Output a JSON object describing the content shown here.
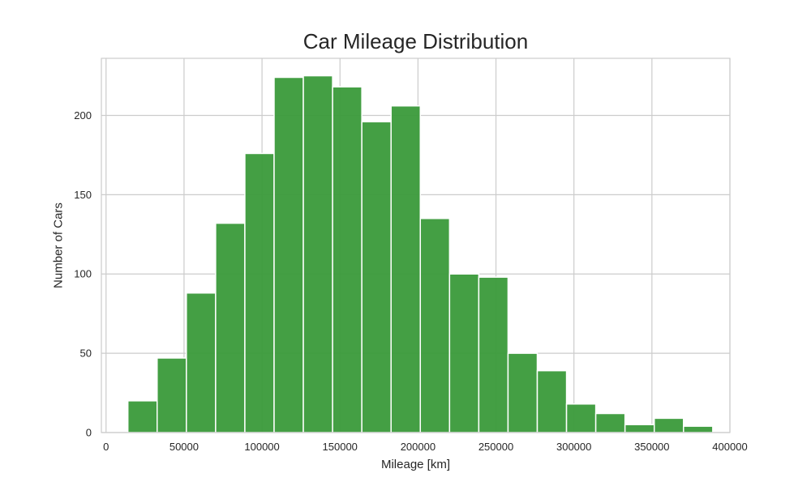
{
  "chart_data": {
    "type": "bar",
    "title": "Car Mileage Distribution",
    "xlabel": "Mileage [km]",
    "ylabel": "Number of Cars",
    "xlim": [
      -3000,
      400000
    ],
    "ylim": [
      0,
      236
    ],
    "xticks": [
      0,
      50000,
      100000,
      150000,
      200000,
      250000,
      300000,
      350000,
      400000
    ],
    "yticks": [
      0,
      50,
      100,
      150,
      200
    ],
    "grid": true,
    "bar_color": "#3a9a3a",
    "bins": [
      {
        "x0": 14000,
        "x1": 32750,
        "count": 20
      },
      {
        "x0": 32750,
        "x1": 51500,
        "count": 47
      },
      {
        "x0": 51500,
        "x1": 70250,
        "count": 88
      },
      {
        "x0": 70250,
        "x1": 89000,
        "count": 132
      },
      {
        "x0": 89000,
        "x1": 107750,
        "count": 176
      },
      {
        "x0": 107750,
        "x1": 126500,
        "count": 224
      },
      {
        "x0": 126500,
        "x1": 145250,
        "count": 225
      },
      {
        "x0": 145250,
        "x1": 164000,
        "count": 218
      },
      {
        "x0": 164000,
        "x1": 182750,
        "count": 196
      },
      {
        "x0": 182750,
        "x1": 201500,
        "count": 206
      },
      {
        "x0": 201500,
        "x1": 220250,
        "count": 135
      },
      {
        "x0": 220250,
        "x1": 239000,
        "count": 100
      },
      {
        "x0": 239000,
        "x1": 257750,
        "count": 98
      },
      {
        "x0": 257750,
        "x1": 276500,
        "count": 50
      },
      {
        "x0": 276500,
        "x1": 295250,
        "count": 39
      },
      {
        "x0": 295250,
        "x1": 314000,
        "count": 18
      },
      {
        "x0": 314000,
        "x1": 332750,
        "count": 12
      },
      {
        "x0": 332750,
        "x1": 351500,
        "count": 5
      },
      {
        "x0": 351500,
        "x1": 370250,
        "count": 9
      },
      {
        "x0": 370250,
        "x1": 389000,
        "count": 4
      }
    ]
  }
}
